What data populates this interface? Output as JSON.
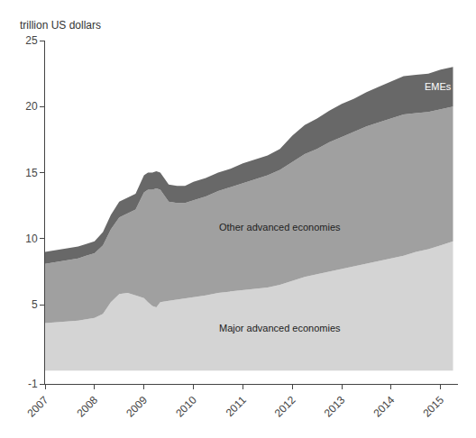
{
  "chart_data": {
    "type": "area",
    "stacked": true,
    "ylabel": "trillion US dollars",
    "x": [
      2007.0,
      2007.17,
      2007.33,
      2007.5,
      2007.67,
      2007.83,
      2008.0,
      2008.17,
      2008.33,
      2008.5,
      2008.67,
      2008.83,
      2009.0,
      2009.08,
      2009.17,
      2009.25,
      2009.33,
      2009.5,
      2009.67,
      2009.83,
      2010.0,
      2010.25,
      2010.5,
      2010.75,
      2011.0,
      2011.25,
      2011.5,
      2011.75,
      2012.0,
      2012.25,
      2012.5,
      2012.75,
      2013.0,
      2013.25,
      2013.5,
      2013.75,
      2014.0,
      2014.25,
      2014.5,
      2014.75,
      2015.0,
      2015.25
    ],
    "series": [
      {
        "name": "Major advanced economies",
        "color": "#d4d4d4",
        "values": [
          3.6,
          3.65,
          3.7,
          3.75,
          3.8,
          3.9,
          4.0,
          4.3,
          5.2,
          5.8,
          5.9,
          5.7,
          5.5,
          5.2,
          4.9,
          4.8,
          5.2,
          5.3,
          5.4,
          5.5,
          5.6,
          5.7,
          5.9,
          6.0,
          6.1,
          6.2,
          6.3,
          6.5,
          6.8,
          7.1,
          7.3,
          7.5,
          7.7,
          7.9,
          8.1,
          8.3,
          8.5,
          8.7,
          9.0,
          9.2,
          9.5,
          9.8
        ]
      },
      {
        "name": "Other advanced economies",
        "color": "#a0a0a0",
        "values": [
          4.5,
          4.55,
          4.6,
          4.65,
          4.7,
          4.8,
          4.9,
          5.2,
          5.5,
          5.8,
          6.0,
          6.5,
          8.0,
          8.5,
          8.8,
          9.0,
          8.5,
          7.5,
          7.3,
          7.2,
          7.3,
          7.5,
          7.7,
          7.9,
          8.1,
          8.3,
          8.5,
          8.7,
          9.0,
          9.3,
          9.5,
          9.8,
          10.0,
          10.2,
          10.4,
          10.5,
          10.6,
          10.7,
          10.5,
          10.4,
          10.3,
          10.2
        ]
      },
      {
        "name": "EMEs",
        "color": "#686868",
        "values": [
          0.9,
          0.9,
          0.9,
          0.9,
          0.9,
          0.9,
          0.9,
          1.0,
          1.1,
          1.2,
          1.2,
          1.2,
          1.3,
          1.3,
          1.3,
          1.3,
          1.3,
          1.3,
          1.3,
          1.3,
          1.4,
          1.4,
          1.4,
          1.4,
          1.5,
          1.5,
          1.5,
          1.6,
          2.0,
          2.2,
          2.3,
          2.4,
          2.5,
          2.5,
          2.6,
          2.7,
          2.8,
          2.9,
          2.9,
          2.9,
          3.0,
          3.0
        ]
      }
    ],
    "xlim": [
      2007,
      2015.35
    ],
    "xticks": [
      2007,
      2008,
      2009,
      2010,
      2011,
      2012,
      2013,
      2014,
      2015
    ],
    "ylim": [
      -1,
      25
    ],
    "yticks": [
      -1,
      5,
      10,
      15,
      20,
      25
    ],
    "grid": false
  }
}
